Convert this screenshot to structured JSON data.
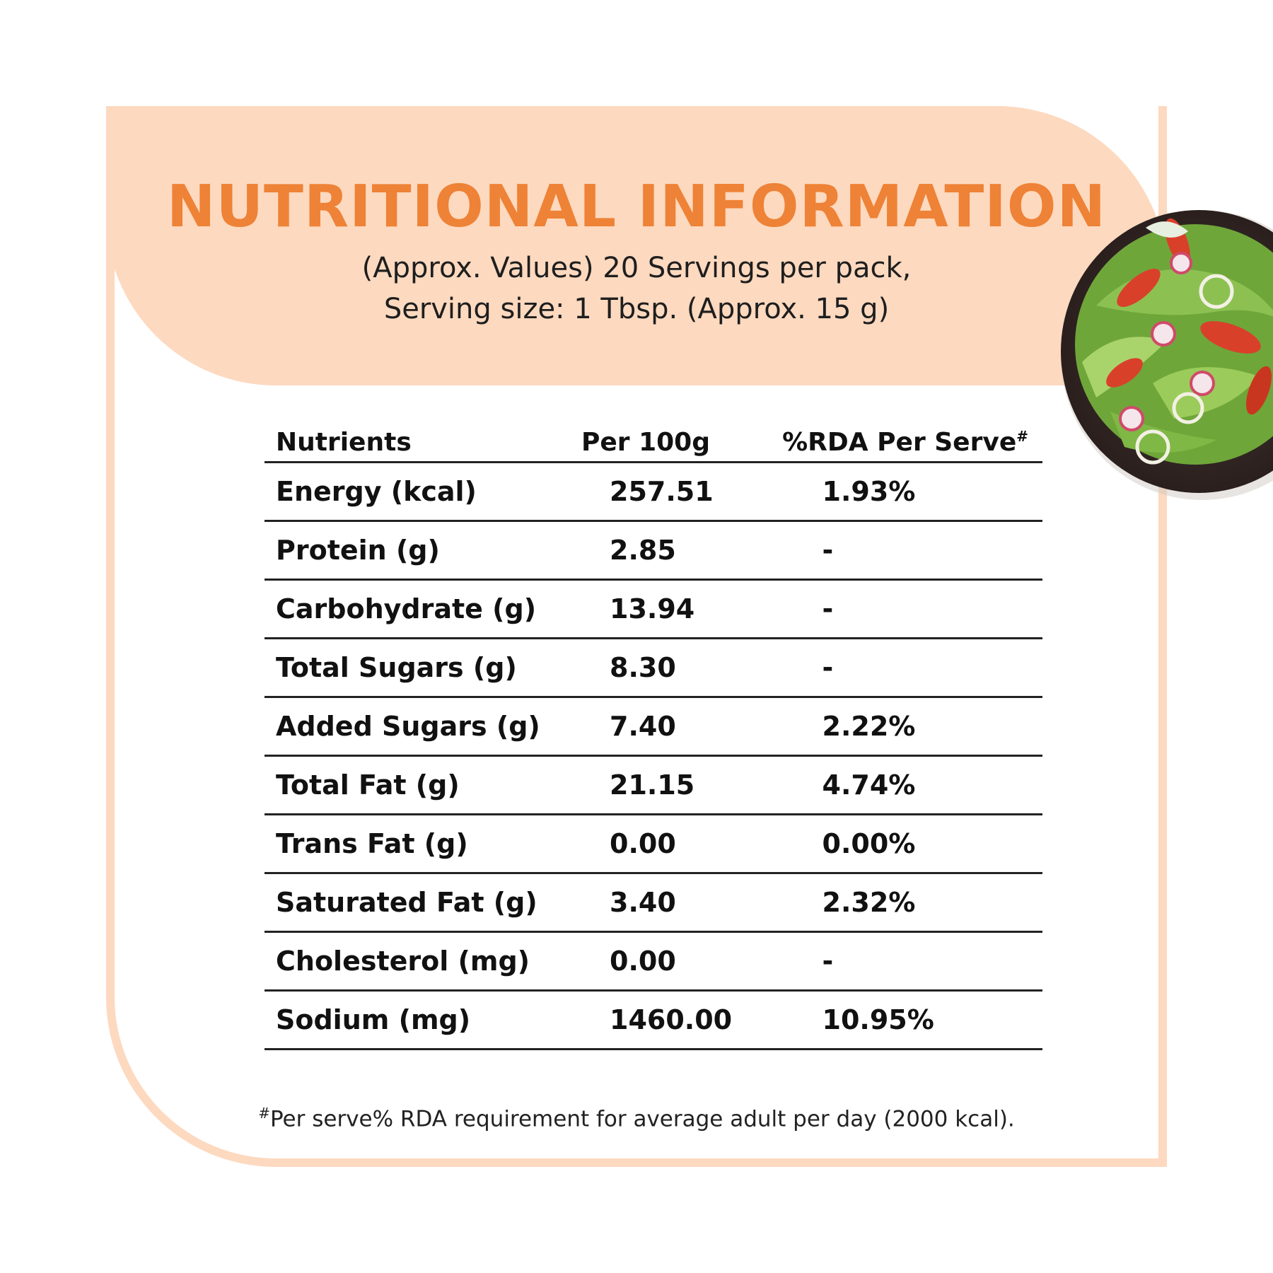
{
  "header": {
    "title": "NUTRITIONAL INFORMATION",
    "subtitle_line1": "(Approx. Values) 20 Servings per pack,",
    "subtitle_line2": "Serving size: 1 Tbsp. (Approx. 15 g)"
  },
  "table": {
    "headers": {
      "nutrients": "Nutrients",
      "per100g": "Per 100g",
      "rda": "%RDA Per Serve",
      "rda_mark": "#"
    },
    "rows": [
      {
        "name": "Energy (kcal)",
        "per100g": "257.51",
        "rda": "1.93%"
      },
      {
        "name": "Protein (g)",
        "per100g": "2.85",
        "rda": "-"
      },
      {
        "name": "Carbohydrate (g)",
        "per100g": "13.94",
        "rda": "-"
      },
      {
        "name": "Total Sugars (g)",
        "per100g": "8.30",
        "rda": "-"
      },
      {
        "name": "Added Sugars (g)",
        "per100g": "7.40",
        "rda": "2.22%"
      },
      {
        "name": "Total Fat (g)",
        "per100g": "21.15",
        "rda": "4.74%"
      },
      {
        "name": "Trans Fat (g)",
        "per100g": "0.00",
        "rda": "0.00%"
      },
      {
        "name": "Saturated Fat (g)",
        "per100g": "3.40",
        "rda": "2.32%"
      },
      {
        "name": "Cholesterol (mg)",
        "per100g": "0.00",
        "rda": "-"
      },
      {
        "name": "Sodium (mg)",
        "per100g": "1460.00",
        "rda": "10.95%"
      }
    ]
  },
  "footnote": {
    "mark": "#",
    "text": "Per serve% RDA requirement for average adult per day (2000 kcal)."
  },
  "colors": {
    "accent": "#ee8236",
    "banner": "#fdd9bf",
    "text": "#111111"
  },
  "image": {
    "icon": "salad-bowl-icon"
  }
}
